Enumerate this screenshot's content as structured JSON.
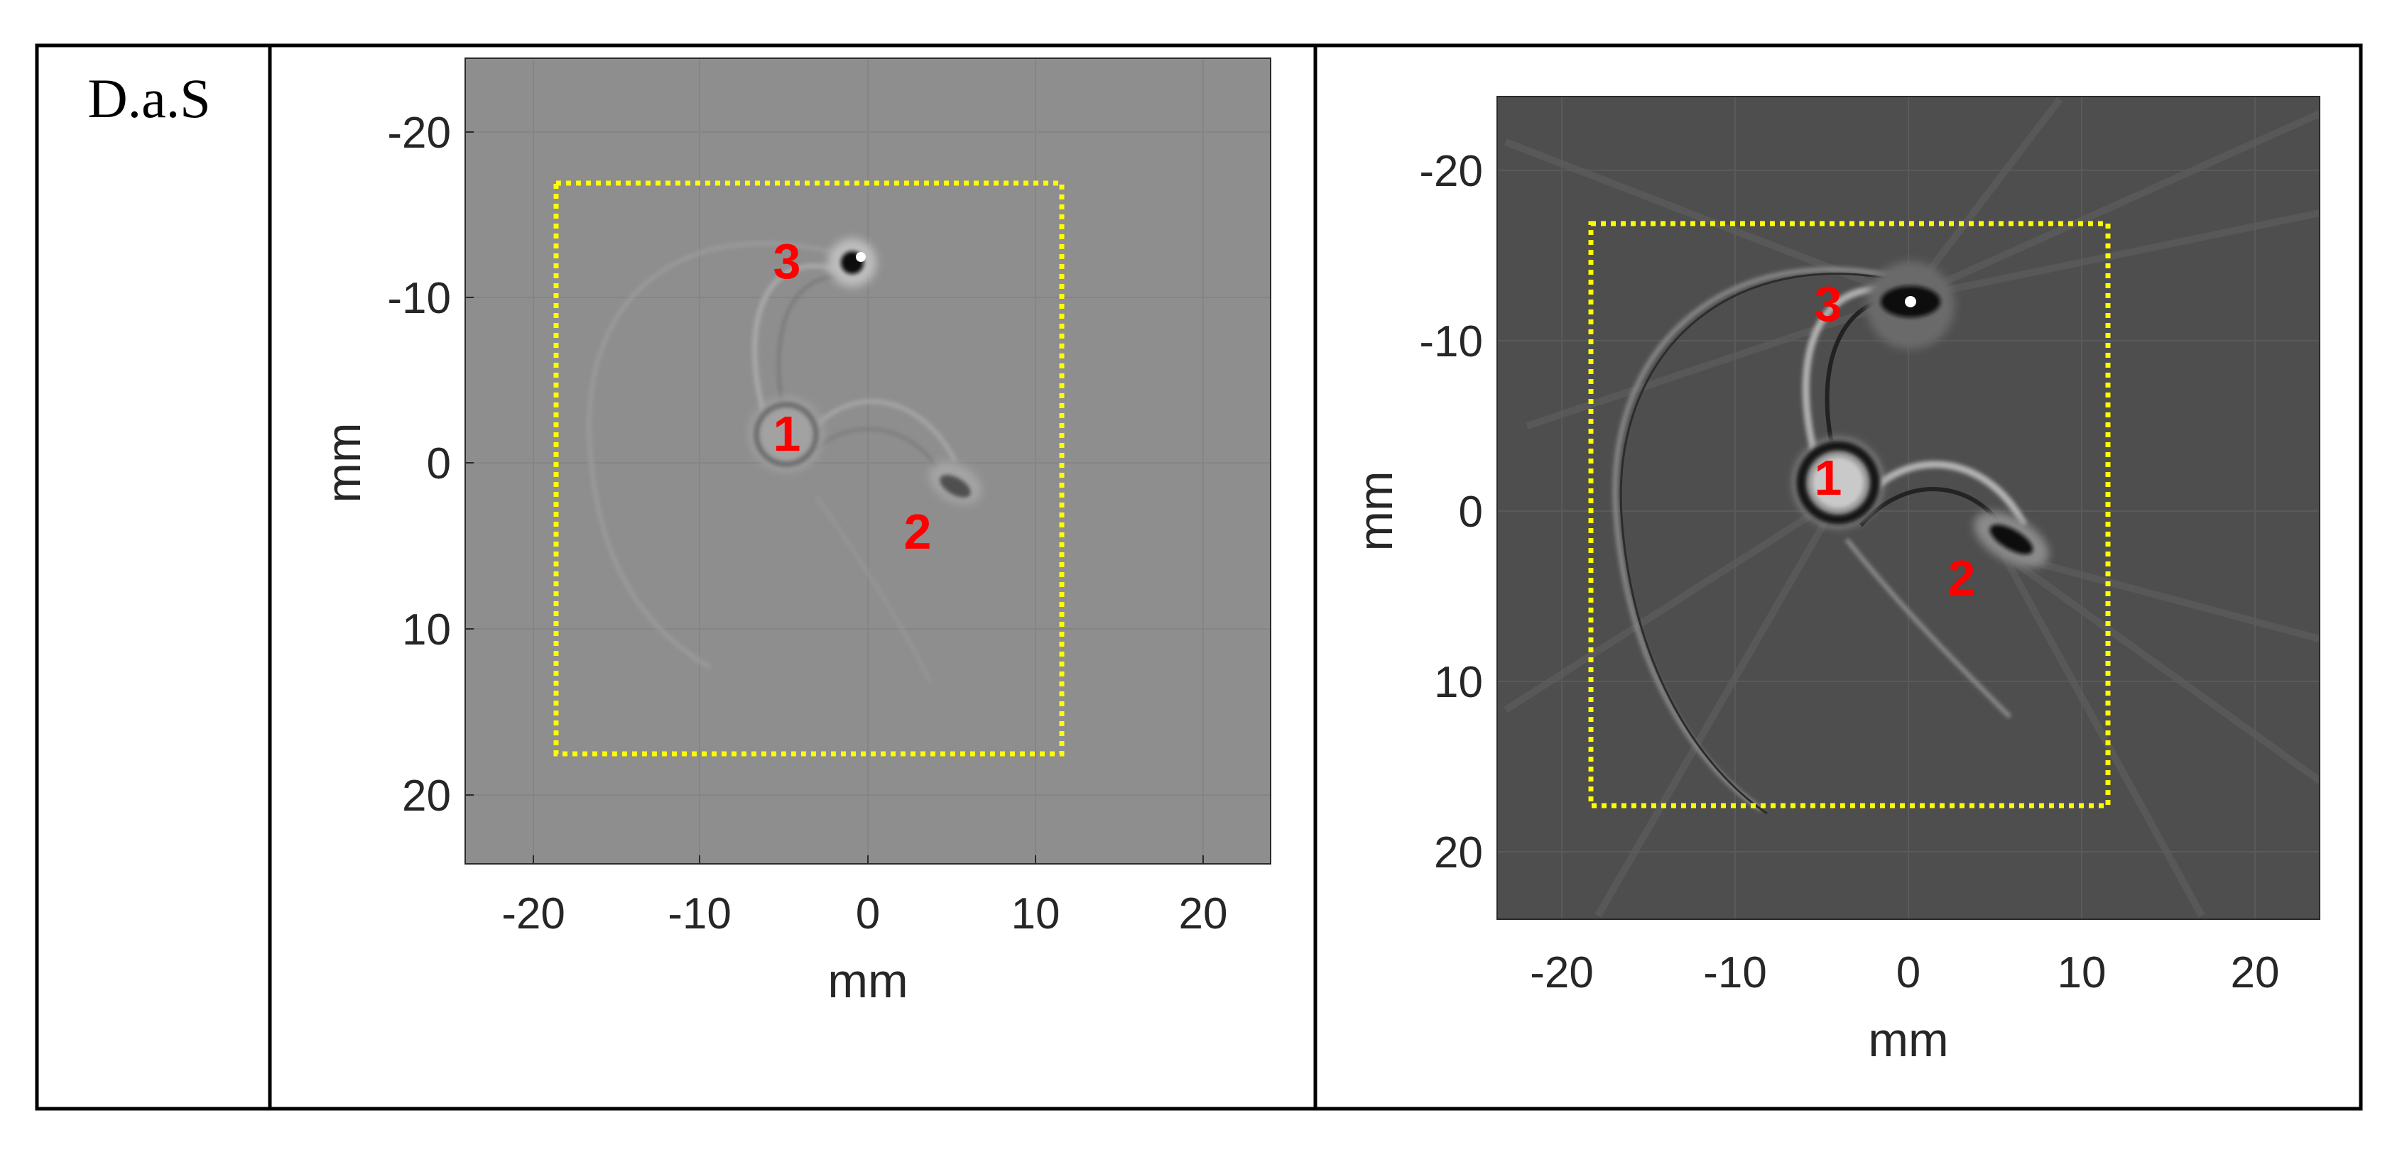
{
  "row_label": "D.a.S",
  "colors": {
    "roi_box": "#ffff00",
    "marker_label": "#ff0000",
    "left_background": "#8e8e8e",
    "right_background": "#4e4e4e"
  },
  "panels": [
    {
      "xlabel": "mm",
      "ylabel": "mm",
      "x_ticks": [
        "-20",
        "-10",
        "0",
        "10",
        "20"
      ],
      "y_ticks": [
        "-20",
        "-10",
        "0",
        "10",
        "20"
      ],
      "axis_range_mm": [
        -24,
        24
      ],
      "markers": [
        {
          "label": "3",
          "x_mm": -4.8,
          "y_mm": -11.8
        },
        {
          "label": "1",
          "x_mm": -4.8,
          "y_mm": -1.6
        },
        {
          "label": "2",
          "x_mm": 3.0,
          "y_mm": 4.2
        }
      ]
    },
    {
      "xlabel": "mm",
      "ylabel": "mm",
      "x_ticks": [
        "-20",
        "-10",
        "0",
        "10",
        "20"
      ],
      "y_ticks": [
        "-20",
        "-10",
        "0",
        "10",
        "20"
      ],
      "axis_range_mm": [
        -24,
        24
      ],
      "markers": [
        {
          "label": "3",
          "x_mm": -4.8,
          "y_mm": -12.0
        },
        {
          "label": "1",
          "x_mm": -4.8,
          "y_mm": -1.6
        },
        {
          "label": "2",
          "x_mm": 3.0,
          "y_mm": 4.2
        }
      ]
    }
  ]
}
